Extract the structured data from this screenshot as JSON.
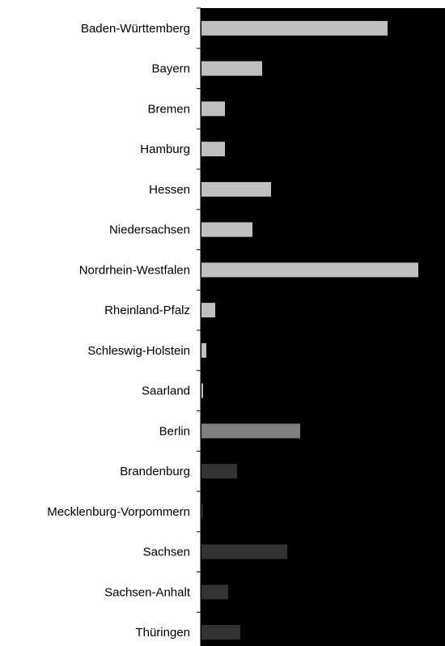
{
  "chart_data": {
    "type": "bar",
    "orientation": "horizontal",
    "categories": [
      "Baden-Württemberg",
      "Bayern",
      "Bremen",
      "Hamburg",
      "Hessen",
      "Niedersachsen",
      "Nordrhein-Westfalen",
      "Rheinland-Pfalz",
      "Schleswig-Holstein",
      "Saarland",
      "Berlin",
      "Brandenburg",
      "Mecklenburg-Vorpommern",
      "Sachsen",
      "Sachsen-Anhalt",
      "Thüringen"
    ],
    "values": [
      230,
      75,
      29,
      29,
      86,
      63,
      268,
      17,
      6,
      2,
      122,
      44,
      1,
      106,
      33,
      48
    ],
    "xlim": [
      0,
      300
    ],
    "grid": false,
    "legend": "none",
    "colors": {
      "plot_background": "#000000",
      "bar_west": "#c0c0c0",
      "bar_berlin": "#808080",
      "bar_east": "#333333",
      "axis": "#000000"
    },
    "bar_color_groups": [
      "bar_west",
      "bar_west",
      "bar_west",
      "bar_west",
      "bar_west",
      "bar_west",
      "bar_west",
      "bar_west",
      "bar_west",
      "bar_west",
      "bar_berlin",
      "bar_east",
      "bar_east",
      "bar_east",
      "bar_east",
      "bar_east"
    ]
  }
}
